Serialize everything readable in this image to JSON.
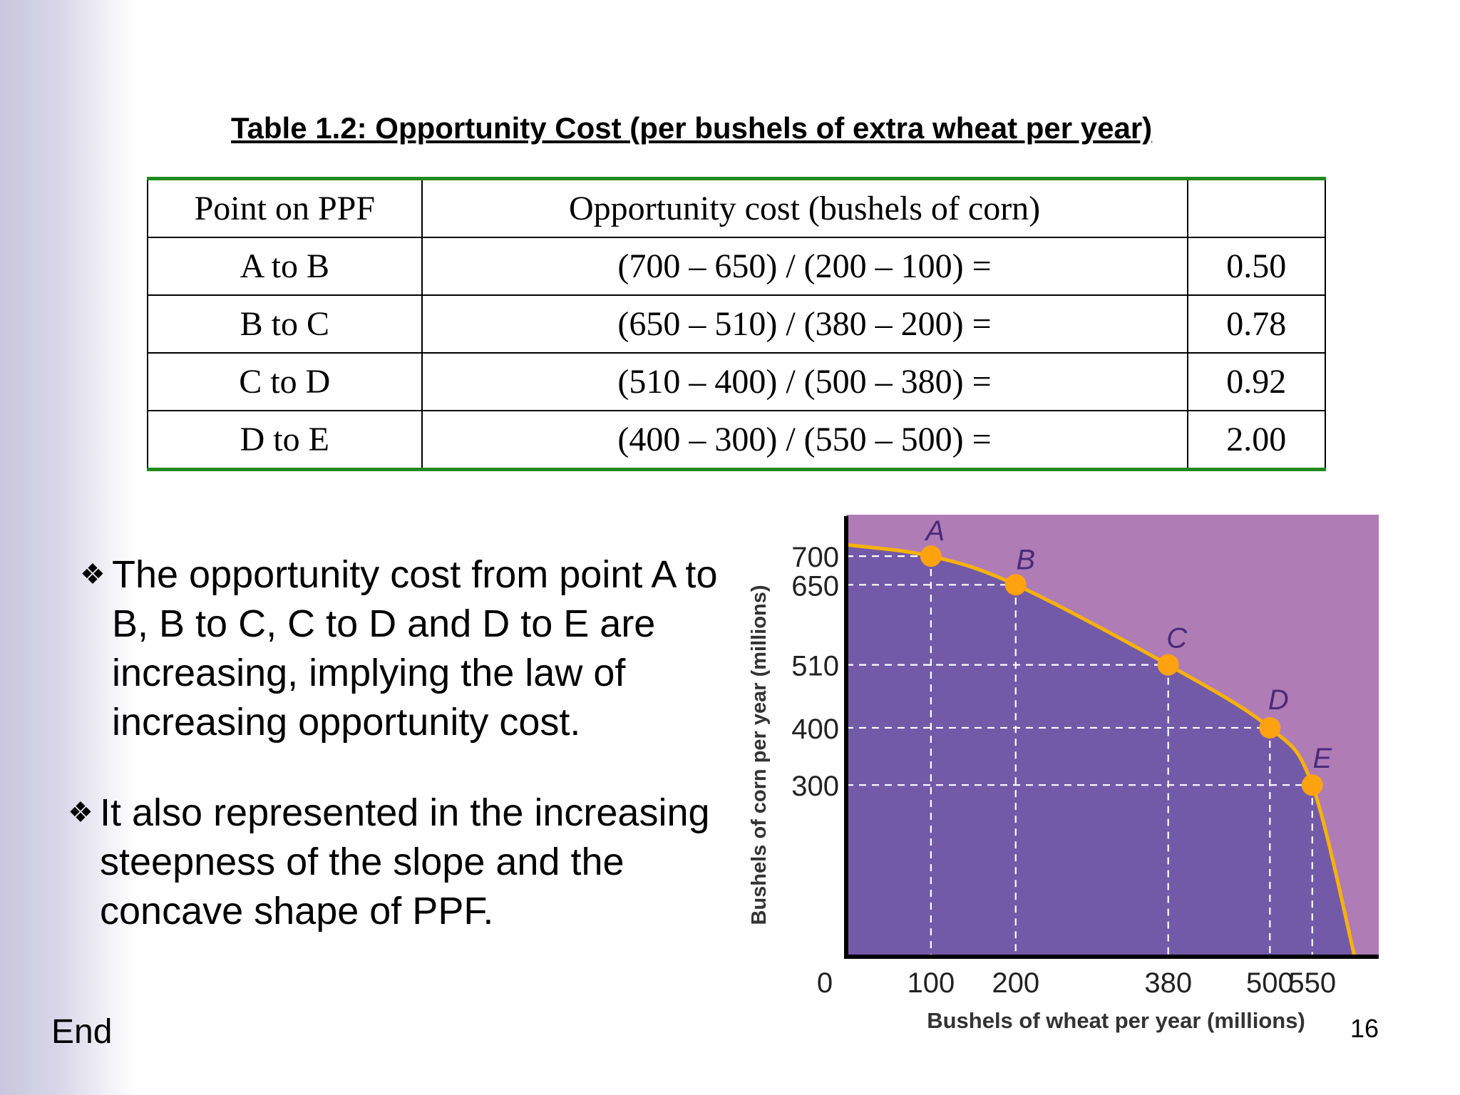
{
  "table": {
    "title": "Table 1.2: Opportunity Cost (per bushels of extra wheat per year)",
    "headers": [
      "Point on PPF",
      "Opportunity cost (bushels of corn)",
      ""
    ],
    "rows": [
      [
        "A to B",
        "(700 – 650) / (200 – 100) =",
        "0.50"
      ],
      [
        "B to C",
        "(650 – 510) / (380 – 200) =",
        "0.78"
      ],
      [
        "C to D",
        "(510 – 400) / (500 – 380) =",
        "0.92"
      ],
      [
        "D to E",
        "(400 – 300) / (550 – 500) =",
        "2.00"
      ]
    ]
  },
  "bullets": [
    {
      "mark": "❖",
      "text": "The opportunity cost from point A to B, B to C, C to D and D to E are increasing, implying the law of increasing opportunity cost."
    },
    {
      "mark": "❖",
      "text": "It also represented in the increasing steepness of the slope and the concave shape of PPF."
    }
  ],
  "footer": {
    "end_label": "End",
    "page_number": "16"
  },
  "colors": {
    "inside": "#735aa8",
    "outside": "#b07cb5",
    "curve": "#f7b20a",
    "point": "#ffa20f",
    "table_rule": "#1f8a1f"
  },
  "chart_data": {
    "type": "line",
    "xlabel": "Bushels of wheat per year (millions)",
    "ylabel": "Bushels of corn per year (millions)",
    "x_ticks": [
      "0",
      "100",
      "200",
      "380",
      "500",
      "550"
    ],
    "y_ticks": [
      "700",
      "650",
      "510",
      "400",
      "300"
    ],
    "xlim": [
      0,
      620
    ],
    "ylim": [
      0,
      760
    ],
    "points": [
      {
        "label": "A",
        "x": 100,
        "y": 700
      },
      {
        "label": "B",
        "x": 200,
        "y": 650
      },
      {
        "label": "C",
        "x": 380,
        "y": 510
      },
      {
        "label": "D",
        "x": 500,
        "y": 400
      },
      {
        "label": "E",
        "x": 550,
        "y": 300
      }
    ],
    "curve_endpoints": {
      "y_intercept": 720,
      "x_intercept": 600
    },
    "grid": "dashed lines from points to axes"
  }
}
